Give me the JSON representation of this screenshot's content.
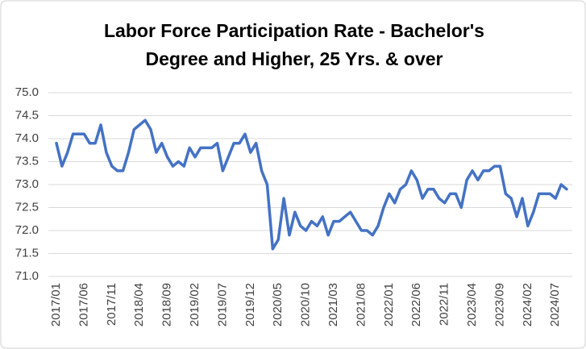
{
  "chart_data": {
    "type": "line",
    "title": [
      "Labor Force Participation Rate - Bachelor's",
      "Degree and Higher, 25 Yrs. & over"
    ],
    "categories": [
      "2017/01",
      null,
      null,
      null,
      null,
      "2017/06",
      null,
      null,
      null,
      null,
      "2017/11",
      null,
      null,
      null,
      null,
      "2018/04",
      null,
      null,
      null,
      null,
      "2018/09",
      null,
      null,
      null,
      null,
      "2019/02",
      null,
      null,
      null,
      null,
      "2019/07",
      null,
      null,
      null,
      null,
      "2019/12",
      null,
      null,
      null,
      null,
      "2020/05",
      null,
      null,
      null,
      null,
      "2020/10",
      null,
      null,
      null,
      null,
      "2021/03",
      null,
      null,
      null,
      null,
      "2021/08",
      null,
      null,
      null,
      null,
      "2022/01",
      null,
      null,
      null,
      null,
      "2022/06",
      null,
      null,
      null,
      null,
      "2022/11",
      null,
      null,
      null,
      null,
      "2023/04",
      null,
      null,
      null,
      null,
      "2023/09",
      null,
      null,
      null,
      null,
      "2024/02",
      null,
      null,
      null,
      null,
      "2024/07",
      null,
      null
    ],
    "values": [
      73.9,
      73.4,
      73.7,
      74.1,
      74.1,
      74.1,
      73.9,
      73.9,
      74.3,
      73.7,
      73.4,
      73.3,
      73.3,
      73.7,
      74.2,
      74.3,
      74.4,
      74.2,
      73.7,
      73.9,
      73.6,
      73.4,
      73.5,
      73.4,
      73.8,
      73.6,
      73.8,
      73.8,
      73.8,
      73.9,
      73.3,
      73.6,
      73.9,
      73.9,
      74.1,
      73.7,
      73.9,
      73.3,
      73.0,
      71.6,
      71.8,
      72.7,
      71.9,
      72.4,
      72.1,
      72.0,
      72.2,
      72.1,
      72.3,
      71.9,
      72.2,
      72.2,
      72.3,
      72.4,
      72.2,
      72.0,
      72.0,
      71.9,
      72.1,
      72.5,
      72.8,
      72.6,
      72.9,
      73.0,
      73.3,
      73.1,
      72.7,
      72.9,
      72.9,
      72.7,
      72.6,
      72.8,
      72.8,
      72.5,
      73.1,
      73.3,
      73.1,
      73.3,
      73.3,
      73.4,
      73.4,
      72.8,
      72.7,
      72.3,
      72.7,
      72.1,
      72.4,
      72.8,
      72.8,
      72.8,
      72.7,
      73.0,
      72.9
    ],
    "color": "#4472c4",
    "ylim": [
      71,
      75
    ],
    "yticks": [
      {
        "value": 71,
        "label": "71.0"
      },
      71.5,
      {
        "value": 72,
        "label": "72.0"
      },
      72.5,
      {
        "value": 73,
        "label": "73.0"
      },
      73.5,
      {
        "value": 74,
        "label": "74.0"
      },
      74.5,
      {
        "value": 75,
        "label": "75.0"
      }
    ],
    "grid": true
  }
}
